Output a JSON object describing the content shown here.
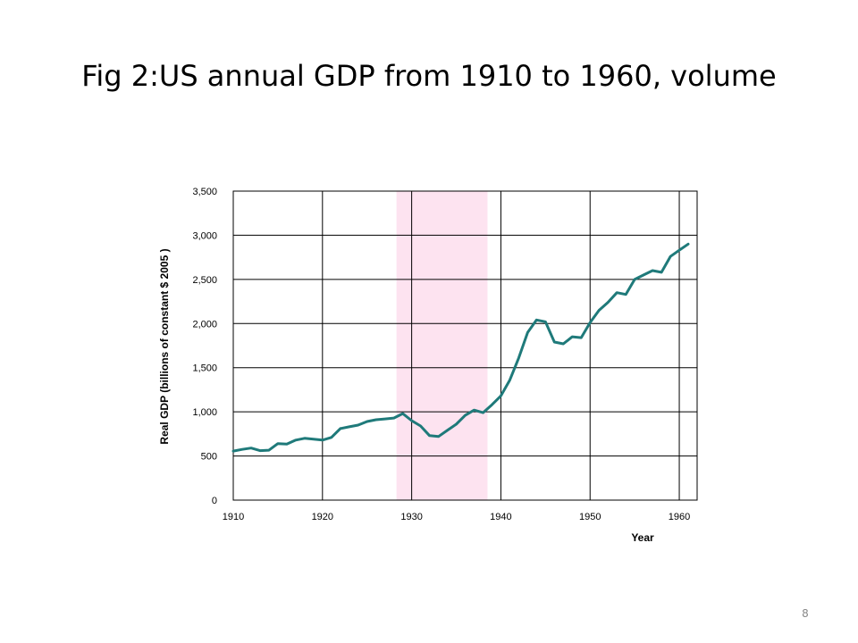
{
  "slide": {
    "title": "Fig 2:US annual GDP from 1910 to 1960, volume",
    "page_number": "8"
  },
  "chart_data": {
    "type": "line",
    "title": "",
    "xlabel": "Year",
    "ylabel": "Real GDP (billions of constant $ 2005 )",
    "xlim": [
      1910,
      1962
    ],
    "ylim": [
      0,
      3500
    ],
    "x_ticks": [
      1910,
      1920,
      1930,
      1940,
      1950,
      1960
    ],
    "y_ticks": [
      0,
      500,
      1000,
      1500,
      2000,
      2500,
      3000,
      3500
    ],
    "x_tick_labels": [
      "1910",
      "1920",
      "1930",
      "1940",
      "1950",
      "1960"
    ],
    "y_tick_labels": [
      "0",
      "500",
      "1,000",
      "1,500",
      "2,000",
      "2,500",
      "3,000",
      "3,500"
    ],
    "grid": true,
    "shaded_region": {
      "x": [
        1928.3,
        1938.5
      ],
      "color": "#fde3f0"
    },
    "line_color": "#1f7a7a",
    "series": [
      {
        "x": [
          1910,
          1911,
          1912,
          1913,
          1914,
          1915,
          1916,
          1917,
          1918,
          1919,
          1920,
          1921,
          1922,
          1923,
          1924,
          1925,
          1926,
          1927,
          1928,
          1929,
          1930,
          1931,
          1932,
          1933,
          1934,
          1935,
          1936,
          1937,
          1938,
          1939,
          1940,
          1941,
          1942,
          1943,
          1944,
          1945,
          1946,
          1947,
          1948,
          1949,
          1950,
          1951,
          1952,
          1953,
          1954,
          1955,
          1956,
          1957,
          1958,
          1959,
          1960,
          1961
        ],
        "values": [
          555,
          575,
          590,
          560,
          565,
          640,
          635,
          680,
          700,
          690,
          680,
          710,
          810,
          830,
          850,
          890,
          910,
          920,
          930,
          980,
          900,
          840,
          730,
          720,
          790,
          860,
          960,
          1020,
          990,
          1080,
          1180,
          1360,
          1610,
          1900,
          2040,
          2020,
          1790,
          1770,
          1850,
          1840,
          2010,
          2150,
          2240,
          2350,
          2330,
          2500,
          2550,
          2600,
          2580,
          2760,
          2830,
          2900
        ]
      }
    ]
  }
}
